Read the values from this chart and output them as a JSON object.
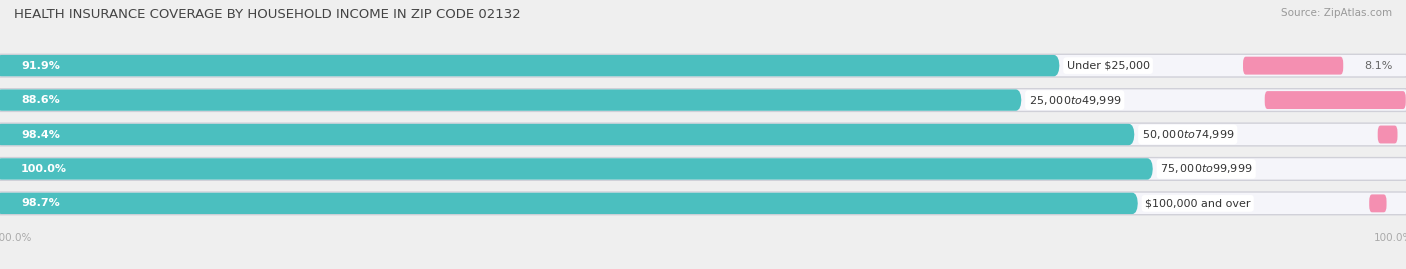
{
  "title": "HEALTH INSURANCE COVERAGE BY HOUSEHOLD INCOME IN ZIP CODE 02132",
  "source": "Source: ZipAtlas.com",
  "categories": [
    "Under $25,000",
    "$25,000 to $49,999",
    "$50,000 to $74,999",
    "$75,000 to $99,999",
    "$100,000 and over"
  ],
  "with_coverage": [
    91.9,
    88.6,
    98.4,
    100.0,
    98.7
  ],
  "without_coverage": [
    8.1,
    11.4,
    1.6,
    0.0,
    1.4
  ],
  "color_with": "#4BBFBF",
  "color_without": "#F48FB1",
  "bg_color": "#efefef",
  "bar_bg": "#e0e0e8",
  "bar_inner_bg": "#f8f8fc",
  "title_fontsize": 9.5,
  "label_fontsize": 8,
  "source_fontsize": 7.5,
  "legend_fontsize": 8,
  "figsize": [
    14.06,
    2.69
  ]
}
